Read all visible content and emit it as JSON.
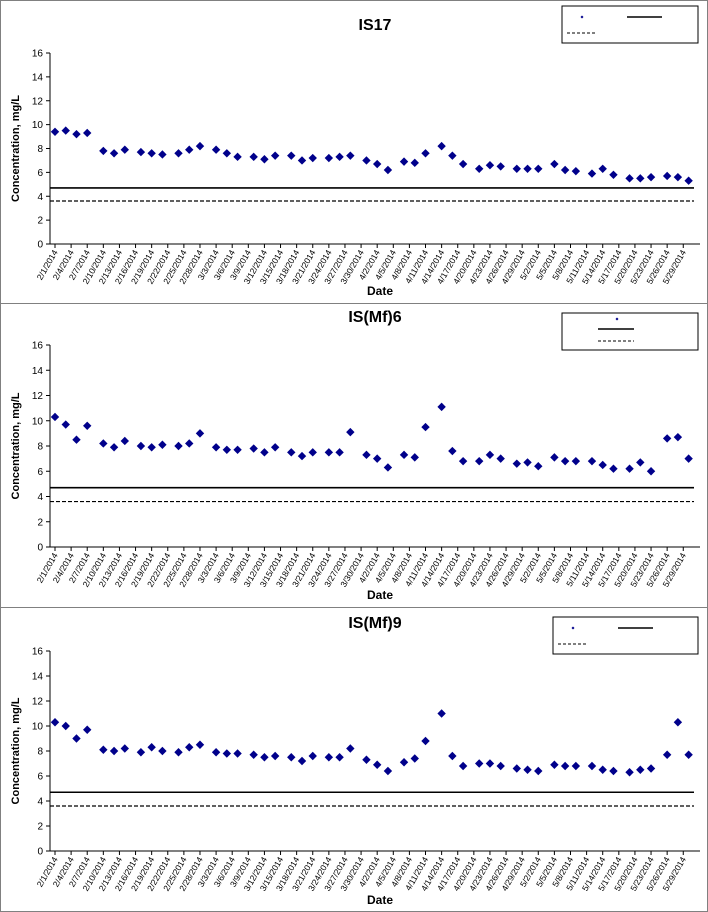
{
  "chart_data": [
    {
      "type": "scatter",
      "title": "IS17",
      "xlabel": "Date",
      "ylabel": "Concentration, mg/L",
      "ylim": [
        0,
        16
      ],
      "yticks": [
        0,
        2,
        4,
        6,
        8,
        10,
        12,
        14,
        16
      ],
      "xlim": [
        "2/1/2014",
        "5/31/2014"
      ],
      "xticks": [
        "2/1/2014",
        "2/4/2014",
        "2/7/2014",
        "2/10/2014",
        "2/13/2014",
        "2/16/2014",
        "2/19/2014",
        "2/22/2014",
        "2/25/2014",
        "2/28/2014",
        "3/3/2014",
        "3/6/2014",
        "3/9/2014",
        "3/12/2014",
        "3/15/2014",
        "3/18/2014",
        "3/21/2014",
        "3/24/2014",
        "3/27/2014",
        "3/30/2014",
        "4/2/2014",
        "4/5/2014",
        "4/8/2014",
        "4/11/2014",
        "4/14/2014",
        "4/17/2014",
        "4/20/2014",
        "4/23/2014",
        "4/26/2014",
        "4/29/2014",
        "5/2/2014",
        "5/5/2014",
        "5/8/2014",
        "5/11/2014",
        "5/14/2014",
        "5/17/2014",
        "5/20/2014",
        "5/23/2014",
        "5/26/2014",
        "5/29/2014"
      ],
      "legend": "top-right",
      "series": [
        {
          "type": "scatter",
          "color": "#00008b",
          "marker": "diamond",
          "x": [
            "2/1/2014",
            "2/3/2014",
            "2/5/2014",
            "2/7/2014",
            "2/10/2014",
            "2/12/2014",
            "2/14/2014",
            "2/17/2014",
            "2/19/2014",
            "2/21/2014",
            "2/24/2014",
            "2/26/2014",
            "2/28/2014",
            "3/3/2014",
            "3/5/2014",
            "3/7/2014",
            "3/10/2014",
            "3/12/2014",
            "3/14/2014",
            "3/17/2014",
            "3/19/2014",
            "3/21/2014",
            "3/24/2014",
            "3/26/2014",
            "3/28/2014",
            "3/31/2014",
            "4/2/2014",
            "4/4/2014",
            "4/7/2014",
            "4/9/2014",
            "4/11/2014",
            "4/14/2014",
            "4/16/2014",
            "4/18/2014",
            "4/21/2014",
            "4/23/2014",
            "4/25/2014",
            "4/28/2014",
            "4/30/2014",
            "5/2/2014",
            "5/5/2014",
            "5/7/2014",
            "5/9/2014",
            "5/12/2014",
            "5/14/2014",
            "5/16/2014",
            "5/19/2014",
            "5/21/2014",
            "5/23/2014",
            "5/26/2014",
            "5/28/2014",
            "5/30/2014"
          ],
          "y": [
            9.4,
            9.5,
            9.2,
            9.3,
            7.8,
            7.6,
            7.9,
            7.7,
            7.6,
            7.5,
            7.6,
            7.9,
            8.2,
            7.9,
            7.6,
            7.3,
            7.3,
            7.1,
            7.4,
            7.4,
            7.0,
            7.2,
            7.2,
            7.3,
            7.4,
            7.0,
            6.7,
            6.2,
            6.9,
            6.8,
            7.6,
            8.2,
            7.4,
            6.7,
            6.3,
            6.6,
            6.5,
            6.3,
            6.3,
            6.3,
            6.7,
            6.2,
            6.1,
            5.9,
            6.3,
            5.8,
            5.5,
            5.5,
            5.6,
            5.7,
            5.6,
            5.3
          ]
        },
        {
          "type": "line",
          "color": "#000000",
          "dash": "solid",
          "y": 4.7
        },
        {
          "type": "line",
          "color": "#000000",
          "dash": "dashed",
          "y": 3.6
        }
      ]
    },
    {
      "type": "scatter",
      "title": "IS(Mf)6",
      "xlabel": "Date",
      "ylabel": "Concentration, mg/L",
      "ylim": [
        0,
        16
      ],
      "yticks": [
        0,
        2,
        4,
        6,
        8,
        10,
        12,
        14,
        16
      ],
      "xlim": [
        "2/1/2014",
        "5/31/2014"
      ],
      "xticks": [
        "2/1/2014",
        "2/4/2014",
        "2/7/2014",
        "2/10/2014",
        "2/13/2014",
        "2/16/2014",
        "2/19/2014",
        "2/22/2014",
        "2/25/2014",
        "2/28/2014",
        "3/3/2014",
        "3/6/2014",
        "3/9/2014",
        "3/12/2014",
        "3/15/2014",
        "3/18/2014",
        "3/21/2014",
        "3/24/2014",
        "3/27/2014",
        "3/30/2014",
        "4/2/2014",
        "4/5/2014",
        "4/8/2014",
        "4/11/2014",
        "4/14/2014",
        "4/17/2014",
        "4/20/2014",
        "4/23/2014",
        "4/26/2014",
        "4/29/2014",
        "5/2/2014",
        "5/5/2014",
        "5/8/2014",
        "5/11/2014",
        "5/14/2014",
        "5/17/2014",
        "5/20/2014",
        "5/23/2014",
        "5/26/2014",
        "5/29/2014"
      ],
      "legend": "top-right",
      "series": [
        {
          "type": "scatter",
          "color": "#00008b",
          "marker": "diamond",
          "x": [
            "2/1/2014",
            "2/3/2014",
            "2/5/2014",
            "2/7/2014",
            "2/10/2014",
            "2/12/2014",
            "2/14/2014",
            "2/17/2014",
            "2/19/2014",
            "2/21/2014",
            "2/24/2014",
            "2/26/2014",
            "2/28/2014",
            "3/3/2014",
            "3/5/2014",
            "3/7/2014",
            "3/10/2014",
            "3/12/2014",
            "3/14/2014",
            "3/17/2014",
            "3/19/2014",
            "3/21/2014",
            "3/24/2014",
            "3/26/2014",
            "3/28/2014",
            "3/31/2014",
            "4/2/2014",
            "4/4/2014",
            "4/7/2014",
            "4/9/2014",
            "4/11/2014",
            "4/14/2014",
            "4/16/2014",
            "4/18/2014",
            "4/21/2014",
            "4/23/2014",
            "4/25/2014",
            "4/28/2014",
            "4/30/2014",
            "5/2/2014",
            "5/5/2014",
            "5/7/2014",
            "5/9/2014",
            "5/12/2014",
            "5/14/2014",
            "5/16/2014",
            "5/19/2014",
            "5/21/2014",
            "5/23/2014",
            "5/26/2014",
            "5/28/2014",
            "5/30/2014"
          ],
          "y": [
            10.3,
            9.7,
            8.5,
            9.6,
            8.2,
            7.9,
            8.4,
            8.0,
            7.9,
            8.1,
            8.0,
            8.2,
            9.0,
            7.9,
            7.7,
            7.7,
            7.8,
            7.5,
            7.9,
            7.5,
            7.2,
            7.5,
            7.5,
            7.5,
            9.1,
            7.3,
            7.0,
            6.3,
            7.3,
            7.1,
            9.5,
            11.1,
            7.6,
            6.8,
            6.8,
            7.3,
            7.0,
            6.6,
            6.7,
            6.4,
            7.1,
            6.8,
            6.8,
            6.8,
            6.5,
            6.2,
            6.2,
            6.7,
            6.0,
            8.6,
            8.7,
            7.0
          ]
        },
        {
          "type": "line",
          "color": "#000000",
          "dash": "solid",
          "y": 4.7
        },
        {
          "type": "line",
          "color": "#000000",
          "dash": "dashed",
          "y": 3.6
        }
      ]
    },
    {
      "type": "scatter",
      "title": "IS(Mf)9",
      "xlabel": "Date",
      "ylabel": "Concentration, mg/L",
      "ylim": [
        0,
        16
      ],
      "yticks": [
        0,
        2,
        4,
        6,
        8,
        10,
        12,
        14,
        16
      ],
      "xlim": [
        "2/1/2014",
        "5/31/2014"
      ],
      "xticks": [
        "2/1/2014",
        "2/4/2014",
        "2/7/2014",
        "2/10/2014",
        "2/13/2014",
        "2/16/2014",
        "2/19/2014",
        "2/22/2014",
        "2/25/2014",
        "2/28/2014",
        "3/3/2014",
        "3/6/2014",
        "3/9/2014",
        "3/12/2014",
        "3/15/2014",
        "3/18/2014",
        "3/21/2014",
        "3/24/2014",
        "3/27/2014",
        "3/30/2014",
        "4/2/2014",
        "4/5/2014",
        "4/8/2014",
        "4/11/2014",
        "4/14/2014",
        "4/17/2014",
        "4/20/2014",
        "4/23/2014",
        "4/26/2014",
        "4/29/2014",
        "5/2/2014",
        "5/5/2014",
        "5/8/2014",
        "5/11/2014",
        "5/14/2014",
        "5/17/2014",
        "5/20/2014",
        "5/23/2014",
        "5/26/2014",
        "5/29/2014"
      ],
      "legend": "top-right",
      "series": [
        {
          "type": "scatter",
          "color": "#00008b",
          "marker": "diamond",
          "x": [
            "2/1/2014",
            "2/3/2014",
            "2/5/2014",
            "2/7/2014",
            "2/10/2014",
            "2/12/2014",
            "2/14/2014",
            "2/17/2014",
            "2/19/2014",
            "2/21/2014",
            "2/24/2014",
            "2/26/2014",
            "2/28/2014",
            "3/3/2014",
            "3/5/2014",
            "3/7/2014",
            "3/10/2014",
            "3/12/2014",
            "3/14/2014",
            "3/17/2014",
            "3/19/2014",
            "3/21/2014",
            "3/24/2014",
            "3/26/2014",
            "3/28/2014",
            "3/31/2014",
            "4/2/2014",
            "4/4/2014",
            "4/7/2014",
            "4/9/2014",
            "4/11/2014",
            "4/14/2014",
            "4/16/2014",
            "4/18/2014",
            "4/21/2014",
            "4/23/2014",
            "4/25/2014",
            "4/28/2014",
            "4/30/2014",
            "5/2/2014",
            "5/5/2014",
            "5/7/2014",
            "5/9/2014",
            "5/12/2014",
            "5/14/2014",
            "5/16/2014",
            "5/19/2014",
            "5/21/2014",
            "5/23/2014",
            "5/26/2014",
            "5/28/2014",
            "5/30/2014"
          ],
          "y": [
            10.3,
            10.0,
            9.0,
            9.7,
            8.1,
            8.0,
            8.2,
            7.9,
            8.3,
            8.0,
            7.9,
            8.3,
            8.5,
            7.9,
            7.8,
            7.8,
            7.7,
            7.5,
            7.6,
            7.5,
            7.2,
            7.6,
            7.5,
            7.5,
            8.2,
            7.3,
            6.9,
            6.4,
            7.1,
            7.4,
            8.8,
            11.0,
            7.6,
            6.8,
            7.0,
            7.0,
            6.8,
            6.6,
            6.5,
            6.4,
            6.9,
            6.8,
            6.8,
            6.8,
            6.5,
            6.4,
            6.3,
            6.5,
            6.6,
            7.7,
            10.3,
            7.7
          ]
        },
        {
          "type": "line",
          "color": "#000000",
          "dash": "solid",
          "y": 4.7
        },
        {
          "type": "line",
          "color": "#000000",
          "dash": "dashed",
          "y": 3.6
        }
      ]
    }
  ]
}
